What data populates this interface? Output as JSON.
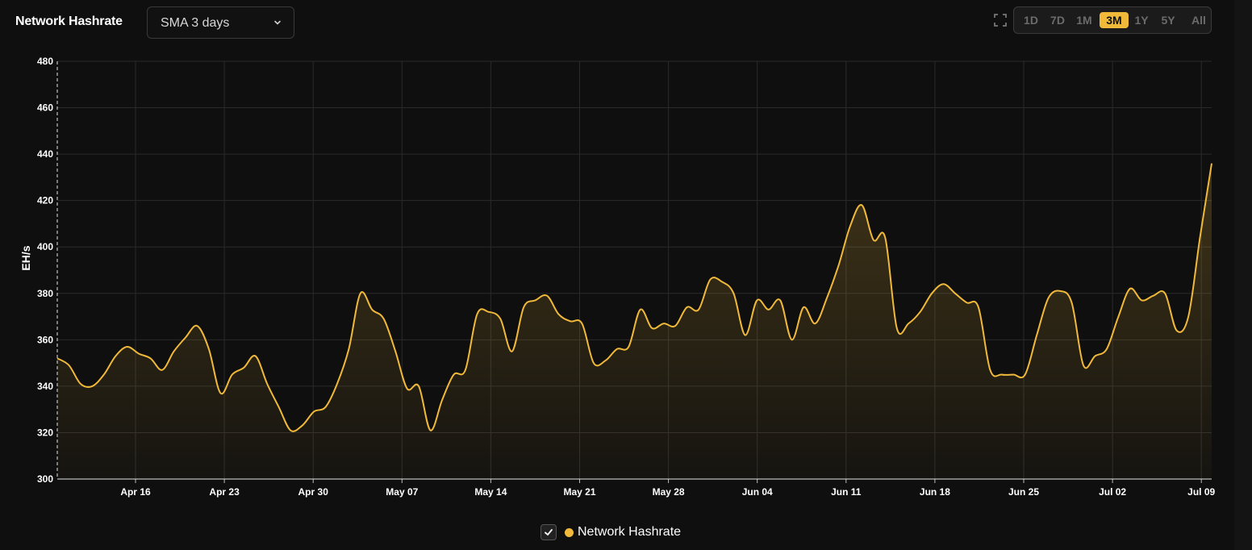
{
  "header": {
    "title": "Network Hashrate",
    "sma_select": "SMA 3 days",
    "ranges": [
      {
        "label": "1D",
        "active": false
      },
      {
        "label": "7D",
        "active": false
      },
      {
        "label": "1M",
        "active": false
      },
      {
        "label": "3M",
        "active": true
      },
      {
        "label": "1Y",
        "active": false
      },
      {
        "label": "5Y",
        "active": false
      },
      {
        "label": "All",
        "active": false
      }
    ]
  },
  "legend": {
    "label": "Network Hashrate",
    "checked": true
  },
  "colors": {
    "accent": "#f0b93a",
    "background": "#0f0f0f",
    "grid": "#2a2a2a"
  },
  "chart_data": {
    "type": "area",
    "ylabel": "EH/s",
    "ylim": [
      300,
      480
    ],
    "yticks": [
      300,
      320,
      340,
      360,
      380,
      400,
      420,
      440,
      460,
      480
    ],
    "xticks": [
      "Apr 16",
      "Apr 23",
      "Apr 30",
      "May 07",
      "May 14",
      "May 21",
      "May 28",
      "Jun 04",
      "Jun 11",
      "Jun 18",
      "Jun 25",
      "Jul 02",
      "Jul 09"
    ],
    "grid": true,
    "series": [
      {
        "name": "Network Hashrate",
        "color": "#f0b93a",
        "values": [
          352,
          349,
          341,
          340,
          345,
          353,
          357,
          354,
          352,
          347,
          355,
          361,
          366,
          356,
          337,
          345,
          348,
          353,
          341,
          331,
          321,
          323,
          329,
          331,
          341,
          356,
          380,
          373,
          369,
          355,
          339,
          340,
          321,
          334,
          345,
          347,
          371,
          372,
          369,
          355,
          374,
          377,
          379,
          371,
          368,
          367,
          350,
          351,
          356,
          357,
          373,
          365,
          367,
          366,
          374,
          373,
          386,
          385,
          380,
          362,
          377,
          373,
          377,
          360,
          374,
          367,
          378,
          392,
          409,
          418,
          403,
          404,
          365,
          367,
          372,
          380,
          384,
          380,
          376,
          374,
          347,
          345,
          345,
          345,
          362,
          378,
          381,
          376,
          349,
          353,
          356,
          370,
          382,
          377,
          379,
          380,
          364,
          370,
          404,
          436
        ]
      }
    ]
  }
}
